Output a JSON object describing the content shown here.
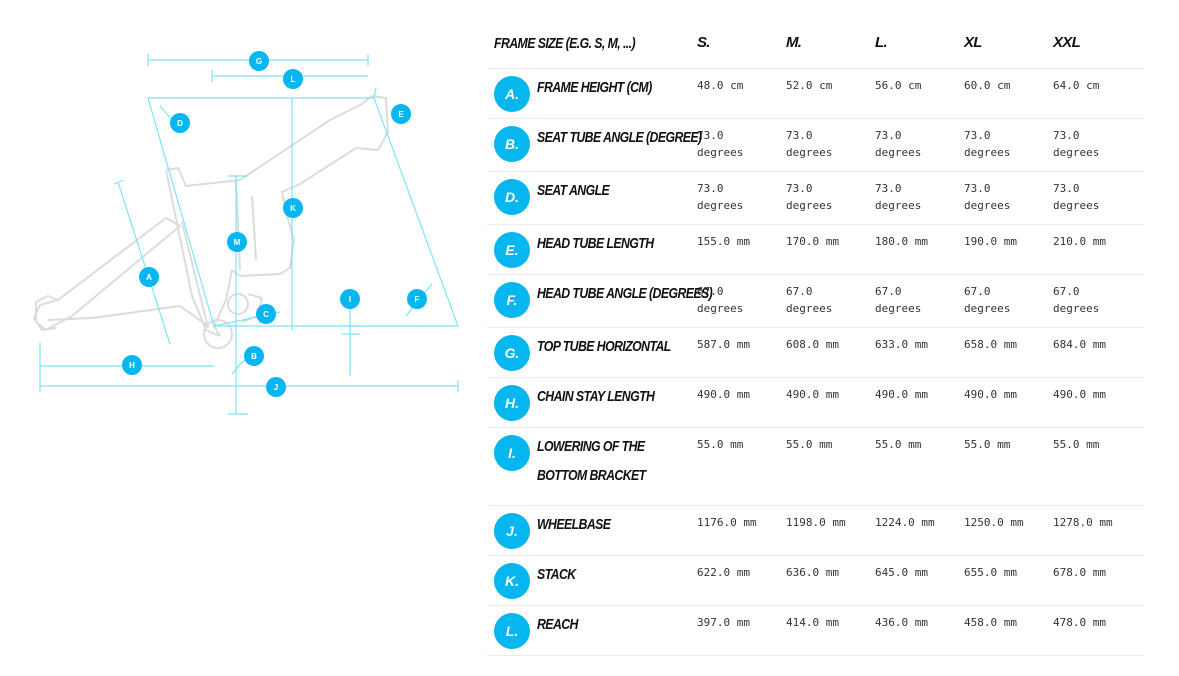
{
  "diagram": {
    "markers": [
      "G",
      "L",
      "D",
      "E",
      "K",
      "M",
      "A",
      "I",
      "F",
      "C",
      "B",
      "H",
      "J"
    ]
  },
  "table": {
    "header": {
      "label": "FRAME SIZE (E.G. S, M, ...)",
      "sizes": [
        "S.",
        "M.",
        "L.",
        "XL",
        "XXL"
      ]
    },
    "rows": [
      {
        "badge": "A.",
        "label": "FRAME HEIGHT (CM)",
        "values": [
          "48.0 cm",
          "52.0 cm",
          "56.0 cm",
          "60.0 cm",
          "64.0 cm"
        ]
      },
      {
        "badge": "B.",
        "label": "SEAT TUBE ANGLE (DEGREE)",
        "values": [
          "73.0\ndegrees",
          "73.0\ndegrees",
          "73.0\ndegrees",
          "73.0\ndegrees",
          "73.0\ndegrees"
        ]
      },
      {
        "badge": "D.",
        "label": "SEAT ANGLE",
        "values": [
          "73.0\ndegrees",
          "73.0\ndegrees",
          "73.0\ndegrees",
          "73.0\ndegrees",
          "73.0\ndegrees"
        ]
      },
      {
        "badge": "E.",
        "label": "HEAD TUBE LENGTH",
        "values": [
          "155.0 mm",
          "170.0 mm",
          "180.0 mm",
          "190.0 mm",
          "210.0 mm"
        ]
      },
      {
        "badge": "F.",
        "label": "HEAD TUBE ANGLE (DEGREES)",
        "values": [
          "67.0\ndegrees",
          "67.0\ndegrees",
          "67.0\ndegrees",
          "67.0\ndegrees",
          "67.0\ndegrees"
        ]
      },
      {
        "badge": "G.",
        "label": "TOP TUBE HORIZONTAL",
        "values": [
          "587.0 mm",
          "608.0 mm",
          "633.0 mm",
          "658.0 mm",
          "684.0 mm"
        ]
      },
      {
        "badge": "H.",
        "label": "CHAIN STAY LENGTH",
        "values": [
          "490.0 mm",
          "490.0 mm",
          "490.0 mm",
          "490.0 mm",
          "490.0 mm"
        ]
      },
      {
        "badge": "I.",
        "label": "LOWERING OF THE BOTTOM BRACKET",
        "values": [
          "55.0 mm",
          "55.0 mm",
          "55.0 mm",
          "55.0 mm",
          "55.0 mm"
        ]
      },
      {
        "badge": "J.",
        "label": "WHEELBASE",
        "values": [
          "1176.0 mm",
          "1198.0 mm",
          "1224.0 mm",
          "1250.0 mm",
          "1278.0 mm"
        ]
      },
      {
        "badge": "K.",
        "label": "STACK",
        "values": [
          "622.0 mm",
          "636.0 mm",
          "645.0 mm",
          "655.0 mm",
          "678.0 mm"
        ]
      },
      {
        "badge": "L.",
        "label": "REACH",
        "values": [
          "397.0 mm",
          "414.0 mm",
          "436.0 mm",
          "458.0 mm",
          "478.0 mm"
        ]
      }
    ]
  }
}
